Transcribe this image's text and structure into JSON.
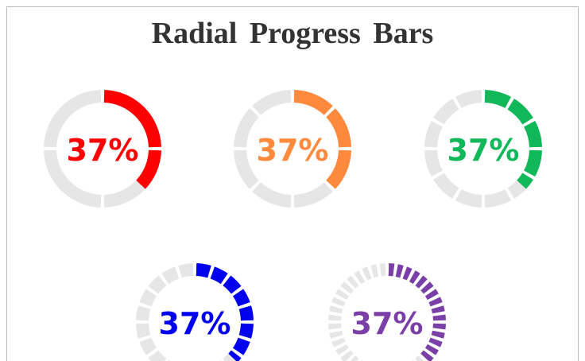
{
  "header": {
    "title": "Radial Progress Bars"
  },
  "items": [
    {
      "value": 37,
      "label": "37%",
      "color": "#ff0000",
      "segments": 4
    },
    {
      "value": 37,
      "label": "37%",
      "color": "#ff8a3d",
      "segments": 8
    },
    {
      "value": 37,
      "label": "37%",
      "color": "#10b85a",
      "segments": 12
    },
    {
      "value": 37,
      "label": "37%",
      "color": "#0000ee",
      "segments": 20
    },
    {
      "value": 37,
      "label": "37%",
      "color": "#7b3fa8",
      "segments": 40
    }
  ]
}
